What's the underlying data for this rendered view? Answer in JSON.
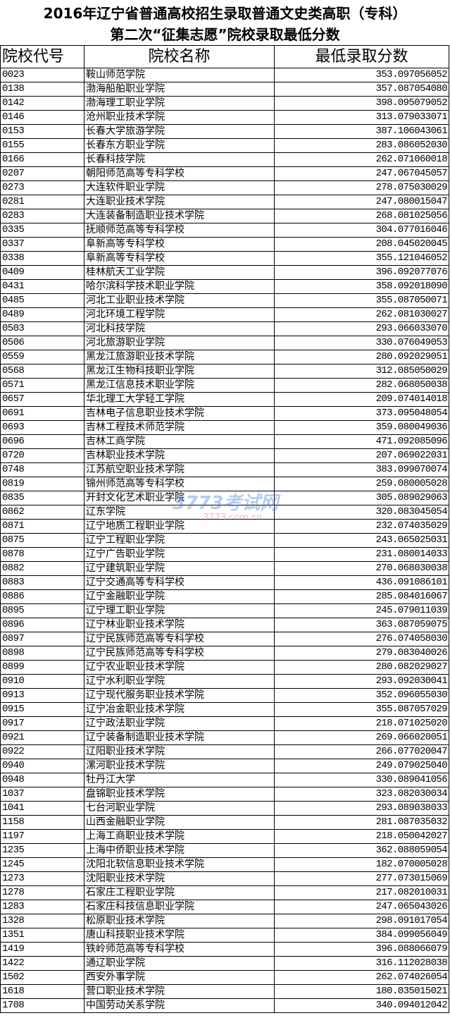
{
  "title": {
    "line1": "2016年辽宁省普通高校招生录取普通文史类高职（专科）",
    "line2": "第二次“征集志愿”院校录取最低分数"
  },
  "table": {
    "headers": [
      "院校代号",
      "院校名称",
      "最低录取分数"
    ],
    "rows": [
      [
        "0023",
        "鞍山师范学院",
        "353.097056052"
      ],
      [
        "0138",
        "渤海船舶职业学院",
        "357.087054080"
      ],
      [
        "0142",
        "渤海理工职业学院",
        "398.095079052"
      ],
      [
        "0146",
        "沧州职业技术学院",
        "313.079033071"
      ],
      [
        "0153",
        "长春大学旅游学院",
        "387.106043061"
      ],
      [
        "0155",
        "长春东方职业学院",
        "283.086052030"
      ],
      [
        "0166",
        "长春科技学院",
        "262.071060018"
      ],
      [
        "0207",
        "朝阳师范高等专科学校",
        "247.067045057"
      ],
      [
        "0273",
        "大连软件职业学院",
        "278.075030029"
      ],
      [
        "0281",
        "大连职业技术学院",
        "247.080015047"
      ],
      [
        "0283",
        "大连装备制造职业技术学院",
        "268.081025056"
      ],
      [
        "0335",
        "抚顺师范高等专科学校",
        "304.077016046"
      ],
      [
        "0337",
        "阜新高等专科学校",
        "208.045020045"
      ],
      [
        "0338",
        "阜新高等专科学校",
        "355.121046052"
      ],
      [
        "0409",
        "桂林航天工业学院",
        "396.092077076"
      ],
      [
        "0431",
        "哈尔滨科学技术职业学院",
        "358.092018090"
      ],
      [
        "0485",
        "河北工业职业技术学院",
        "355.087050071"
      ],
      [
        "0489",
        "河北环境工程学院",
        "262.081030027"
      ],
      [
        "0503",
        "河北科技学院",
        "293.066033070"
      ],
      [
        "0506",
        "河北旅游职业学院",
        "330.076049053"
      ],
      [
        "0559",
        "黑龙江旅游职业技术学院",
        "280.092029051"
      ],
      [
        "0568",
        "黑龙江生物科技职业学院",
        "312.085050029"
      ],
      [
        "0571",
        "黑龙江信息技术职业学院",
        "282.068050038"
      ],
      [
        "0657",
        "华北理工大学轻工学院",
        "209.074014018"
      ],
      [
        "0691",
        "吉林电子信息职业技术学院",
        "373.095048054"
      ],
      [
        "0693",
        "吉林工程技术师范学院",
        "359.080049036"
      ],
      [
        "0696",
        "吉林工商学院",
        "471.092085096"
      ],
      [
        "0720",
        "吉林职业技术学院",
        "207.069022031"
      ],
      [
        "0748",
        "江苏航空职业技术学院",
        "383.099070074"
      ],
      [
        "0819",
        "锦州师范高等专科学校",
        "259.080005028"
      ],
      [
        "0835",
        "开封文化艺术职业学院",
        "305.089029063"
      ],
      [
        "0862",
        "辽东学院",
        "320.083045054"
      ],
      [
        "0871",
        "辽宁地质工程职业学院",
        "232.074035029"
      ],
      [
        "0875",
        "辽宁工程职业学院",
        "243.065025031"
      ],
      [
        "0878",
        "辽宁广告职业学院",
        "231.080014033"
      ],
      [
        "0882",
        "辽宁建筑职业学院",
        "270.068030038"
      ],
      [
        "0883",
        "辽宁交通高等专科学校",
        "436.091086101"
      ],
      [
        "0886",
        "辽宁金融职业学院",
        "285.084016067"
      ],
      [
        "0895",
        "辽宁理工职业学院",
        "245.079011039"
      ],
      [
        "0896",
        "辽宁林业职业技术学院",
        "363.087059075"
      ],
      [
        "0897",
        "辽宁民族师范高等专科学校",
        "276.074058030"
      ],
      [
        "0898",
        "辽宁民族师范高等专科学校",
        "279.083040026"
      ],
      [
        "0899",
        "辽宁农业职业技术学院",
        "280.082029027"
      ],
      [
        "0910",
        "辽宁水利职业学院",
        "293.092030041"
      ],
      [
        "0913",
        "辽宁现代服务职业技术学院",
        "352.096055030"
      ],
      [
        "0915",
        "辽宁冶金职业技术学院",
        "355.087057029"
      ],
      [
        "0917",
        "辽宁政法职业学院",
        "218.071025020"
      ],
      [
        "0921",
        "辽宁装备制造职业技术学院",
        "269.066020051"
      ],
      [
        "0922",
        "辽阳职业技术学院",
        "266.077020047"
      ],
      [
        "0940",
        "漯河职业技术学院",
        "249.079025040"
      ],
      [
        "0948",
        "牡丹江大学",
        "330.089041056"
      ],
      [
        "1037",
        "盘锦职业技术学院",
        "323.082030034"
      ],
      [
        "1041",
        "七台河职业学院",
        "293.089038033"
      ],
      [
        "1158",
        "山西金融职业学院",
        "281.087035032"
      ],
      [
        "1197",
        "上海工商职业技术学院",
        "218.050042027"
      ],
      [
        "1235",
        "上海中侨职业技术学院",
        "362.088059054"
      ],
      [
        "1245",
        "沈阳北软信息职业技术学院",
        "182.070005028"
      ],
      [
        "1273",
        "沈阳职业技术学院",
        "277.073015069"
      ],
      [
        "1278",
        "石家庄工程职业学院",
        "217.082010031"
      ],
      [
        "1283",
        "石家庄科技信息职业学院",
        "247.065043026"
      ],
      [
        "1328",
        "松原职业技术学院",
        "298.091017054"
      ],
      [
        "1351",
        "唐山科技职业技术学院",
        "384.099056049"
      ],
      [
        "1419",
        "铁岭师范高等专科学校",
        "396.088066079"
      ],
      [
        "1422",
        "通辽职业学院",
        "316.112028038"
      ],
      [
        "1502",
        "西安外事学院",
        "262.074026054"
      ],
      [
        "1618",
        "营口职业技术学院",
        "180.035015021"
      ],
      [
        "1708",
        "中国劳动关系学院",
        "340.094012042"
      ]
    ]
  },
  "watermark": {
    "logo": "3773考试网",
    "site": "3773.com.cn"
  }
}
